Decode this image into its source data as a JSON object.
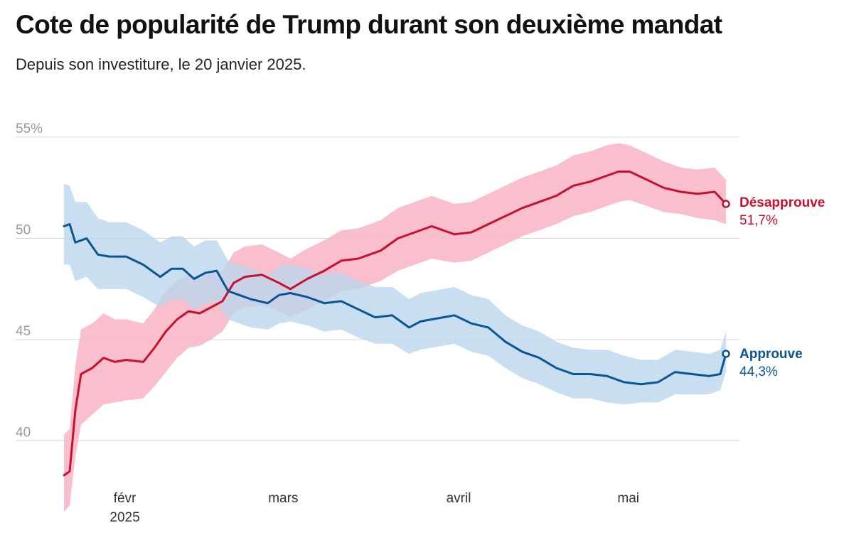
{
  "title": "Cote de popularité de Trump durant son deuxième mandat",
  "subtitle": "Depuis son investiture, le 20 janvier 2025.",
  "colors": {
    "disapprove": "#c8102e",
    "disapprove_band": "#f9b4c4",
    "approve": "#0a5596",
    "approve_band": "#bcd6ec",
    "grid": "#d9d9d9"
  },
  "chart_data": {
    "type": "line",
    "title": "Cote de popularité de Trump durant son deuxième mandat",
    "subtitle": "Depuis son investiture, le 20 janvier 2025.",
    "xlabel": "",
    "ylabel": "",
    "x_range": [
      "2025-01-21",
      "2025-05-18"
    ],
    "ylim": [
      38,
      56
    ],
    "y_ticks": [
      {
        "value": 55,
        "label": "55%"
      },
      {
        "value": 50,
        "label": "50"
      },
      {
        "value": 45,
        "label": "45"
      },
      {
        "value": 40,
        "label": "40"
      }
    ],
    "x_ticks": [
      {
        "date": "2025-02-01",
        "label": "févr",
        "sublabel": "2025"
      },
      {
        "date": "2025-03-01",
        "label": "mars",
        "sublabel": ""
      },
      {
        "date": "2025-04-01",
        "label": "avril",
        "sublabel": ""
      },
      {
        "date": "2025-05-01",
        "label": "mai",
        "sublabel": ""
      }
    ],
    "grid": true,
    "legend": "direct labels at line ends",
    "series": [
      {
        "name": "Désapprouve",
        "end_label": "51,7%",
        "x": [
          "2025-01-21",
          "2025-01-22",
          "2025-01-23",
          "2025-01-24",
          "2025-01-26",
          "2025-01-28",
          "2025-01-30",
          "2025-02-01",
          "2025-02-04",
          "2025-02-06",
          "2025-02-08",
          "2025-02-10",
          "2025-02-12",
          "2025-02-14",
          "2025-02-16",
          "2025-02-18",
          "2025-02-20",
          "2025-02-22",
          "2025-02-25",
          "2025-02-28",
          "2025-03-02",
          "2025-03-05",
          "2025-03-08",
          "2025-03-11",
          "2025-03-14",
          "2025-03-18",
          "2025-03-21",
          "2025-03-24",
          "2025-03-27",
          "2025-03-31",
          "2025-04-03",
          "2025-04-06",
          "2025-04-09",
          "2025-04-12",
          "2025-04-15",
          "2025-04-18",
          "2025-04-21",
          "2025-04-24",
          "2025-04-27",
          "2025-04-29",
          "2025-05-01",
          "2025-05-04",
          "2025-05-07",
          "2025-05-10",
          "2025-05-13",
          "2025-05-16",
          "2025-05-18"
        ],
        "y": [
          38.3,
          38.5,
          41.5,
          43.3,
          43.6,
          44.1,
          43.9,
          44.0,
          43.9,
          44.6,
          45.4,
          46.0,
          46.4,
          46.3,
          46.6,
          46.9,
          47.8,
          48.1,
          48.2,
          47.8,
          47.5,
          48.0,
          48.4,
          48.9,
          49.0,
          49.4,
          50.0,
          50.3,
          50.6,
          50.2,
          50.3,
          50.7,
          51.1,
          51.5,
          51.8,
          52.1,
          52.6,
          52.8,
          53.1,
          53.3,
          53.3,
          52.9,
          52.5,
          52.3,
          52.2,
          52.3,
          51.7
        ],
        "band_low": [
          36.5,
          36.8,
          39.2,
          40.8,
          41.3,
          41.8,
          41.9,
          42.0,
          42.1,
          42.7,
          43.4,
          44.1,
          44.6,
          44.7,
          45.0,
          45.4,
          46.3,
          46.6,
          46.7,
          46.4,
          46.1,
          46.5,
          46.9,
          47.4,
          47.5,
          47.9,
          48.4,
          48.7,
          49.0,
          48.8,
          48.9,
          49.3,
          49.7,
          50.1,
          50.4,
          50.7,
          51.1,
          51.3,
          51.6,
          51.8,
          51.9,
          51.6,
          51.3,
          51.2,
          51.0,
          50.9,
          50.7
        ],
        "band_high": [
          40.3,
          40.6,
          43.7,
          45.5,
          45.8,
          46.3,
          46.0,
          46.0,
          45.8,
          46.5,
          47.4,
          47.9,
          48.2,
          48.0,
          48.3,
          48.4,
          49.3,
          49.6,
          49.7,
          49.3,
          49.0,
          49.5,
          49.9,
          50.4,
          50.5,
          50.9,
          51.5,
          51.8,
          52.1,
          51.7,
          51.8,
          52.2,
          52.6,
          53.0,
          53.3,
          53.6,
          54.1,
          54.3,
          54.6,
          54.7,
          54.6,
          54.2,
          53.8,
          53.5,
          53.4,
          53.5,
          52.9
        ]
      },
      {
        "name": "Approuve",
        "end_label": "44,3%",
        "x": [
          "2025-01-21",
          "2025-01-22",
          "2025-01-23",
          "2025-01-25",
          "2025-01-27",
          "2025-01-29",
          "2025-02-01",
          "2025-02-04",
          "2025-02-07",
          "2025-02-09",
          "2025-02-11",
          "2025-02-13",
          "2025-02-15",
          "2025-02-17",
          "2025-02-19",
          "2025-02-21",
          "2025-02-23",
          "2025-02-26",
          "2025-02-28",
          "2025-03-02",
          "2025-03-05",
          "2025-03-08",
          "2025-03-11",
          "2025-03-14",
          "2025-03-17",
          "2025-03-20",
          "2025-03-23",
          "2025-03-25",
          "2025-03-27",
          "2025-03-31",
          "2025-04-03",
          "2025-04-06",
          "2025-04-09",
          "2025-04-12",
          "2025-04-15",
          "2025-04-18",
          "2025-04-21",
          "2025-04-24",
          "2025-04-27",
          "2025-04-30",
          "2025-05-03",
          "2025-05-06",
          "2025-05-09",
          "2025-05-12",
          "2025-05-15",
          "2025-05-17",
          "2025-05-18"
        ],
        "y": [
          50.6,
          50.7,
          49.8,
          50.0,
          49.2,
          49.1,
          49.1,
          48.7,
          48.1,
          48.5,
          48.5,
          48.0,
          48.3,
          48.4,
          47.4,
          47.2,
          47.0,
          46.8,
          47.2,
          47.3,
          47.1,
          46.8,
          46.9,
          46.5,
          46.1,
          46.2,
          45.6,
          45.9,
          46.0,
          46.2,
          45.8,
          45.6,
          44.9,
          44.4,
          44.1,
          43.6,
          43.3,
          43.3,
          43.2,
          42.9,
          42.8,
          42.9,
          43.4,
          43.3,
          43.2,
          43.3,
          44.3
        ],
        "band_low": [
          48.7,
          48.7,
          47.9,
          48.1,
          47.5,
          47.5,
          47.5,
          47.1,
          46.6,
          47.0,
          47.0,
          46.5,
          46.8,
          46.9,
          46.0,
          45.8,
          45.6,
          45.5,
          45.8,
          45.9,
          45.7,
          45.4,
          45.5,
          45.1,
          44.8,
          44.8,
          44.3,
          44.5,
          44.6,
          44.8,
          44.4,
          44.2,
          43.6,
          43.1,
          42.8,
          42.4,
          42.1,
          42.1,
          41.9,
          41.8,
          41.9,
          41.9,
          42.3,
          42.3,
          42.3,
          42.5,
          43.4
        ],
        "band_high": [
          52.7,
          52.6,
          51.8,
          51.8,
          51.0,
          50.8,
          50.8,
          50.4,
          49.8,
          50.1,
          50.1,
          49.6,
          49.9,
          49.9,
          48.9,
          48.7,
          48.5,
          48.2,
          48.6,
          48.7,
          48.5,
          48.2,
          48.3,
          47.9,
          47.6,
          47.6,
          47.0,
          47.3,
          47.4,
          47.6,
          47.2,
          47.0,
          46.2,
          45.7,
          45.4,
          44.9,
          44.6,
          44.5,
          44.5,
          44.2,
          44.0,
          44.0,
          44.5,
          44.4,
          44.3,
          44.5,
          45.4
        ]
      }
    ]
  }
}
